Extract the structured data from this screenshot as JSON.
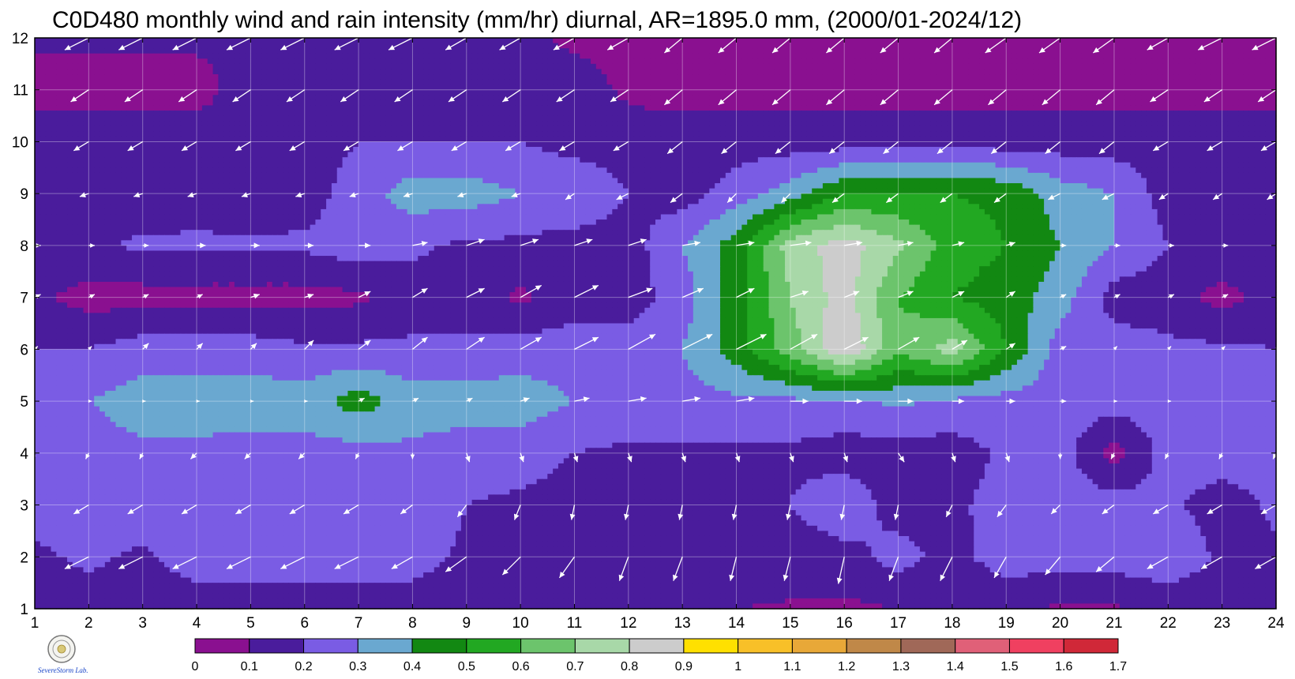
{
  "chart_data": {
    "type": "heatmap",
    "title": "C0D480 monthly wind and rain intensity (mm/hr) diurnal, AR=1895.0 mm, (2000/01-2024/12)",
    "xlabel": "",
    "ylabel": "",
    "xlim": [
      1,
      24
    ],
    "ylim": [
      1,
      12
    ],
    "x_ticks": [
      "1",
      "2",
      "3",
      "4",
      "5",
      "6",
      "7",
      "8",
      "9",
      "10",
      "11",
      "12",
      "13",
      "14",
      "15",
      "16",
      "17",
      "18",
      "19",
      "20",
      "21",
      "22",
      "23",
      "24"
    ],
    "y_ticks": [
      "1",
      "2",
      "3",
      "4",
      "5",
      "6",
      "7",
      "8",
      "9",
      "10",
      "11",
      "12"
    ],
    "grid": true,
    "colorbar": {
      "placement": "bottom",
      "levels": [
        "0",
        "0.1",
        "0.2",
        "0.3",
        "0.4",
        "0.5",
        "0.6",
        "0.7",
        "0.8",
        "0.9",
        "1",
        "1.1",
        "1.2",
        "1.3",
        "1.4",
        "1.5",
        "1.6",
        "1.7"
      ],
      "colors": [
        "#8a1090",
        "#4a1c9c",
        "#7a5ce4",
        "#6aa8d0",
        "#128812",
        "#22a822",
        "#6cc46c",
        "#a8d8a8",
        "#cccccc",
        "#ffe000",
        "#f8c028",
        "#e8a838",
        "#c08848",
        "#a06858",
        "#e06078",
        "#f04060",
        "#d02838"
      ]
    },
    "rain_grid_hours": [
      1,
      2,
      3,
      4,
      5,
      6,
      7,
      8,
      9,
      10,
      11,
      12,
      13,
      14,
      15,
      16,
      17,
      18,
      19,
      20,
      21,
      22,
      23,
      24
    ],
    "rain_intensity_by_month": [
      {
        "month": 1,
        "values": [
          0.15,
          0.15,
          0.15,
          0.15,
          0.15,
          0.15,
          0.15,
          0.15,
          0.15,
          0.15,
          0.15,
          0.15,
          0.12,
          0.1,
          0.09,
          0.08,
          0.1,
          0.12,
          0.1,
          0.09,
          0.09,
          0.12,
          0.15,
          0.15
        ]
      },
      {
        "month": 2,
        "values": [
          0.18,
          0.22,
          0.18,
          0.25,
          0.25,
          0.25,
          0.26,
          0.24,
          0.18,
          0.15,
          0.15,
          0.15,
          0.15,
          0.15,
          0.15,
          0.16,
          0.24,
          0.16,
          0.26,
          0.25,
          0.25,
          0.28,
          0.18,
          0.18
        ]
      },
      {
        "month": 3,
        "values": [
          0.24,
          0.26,
          0.28,
          0.28,
          0.28,
          0.26,
          0.26,
          0.26,
          0.2,
          0.18,
          0.15,
          0.15,
          0.15,
          0.15,
          0.2,
          0.28,
          0.15,
          0.18,
          0.24,
          0.25,
          0.25,
          0.22,
          0.15,
          0.22
        ]
      },
      {
        "month": 4,
        "values": [
          0.25,
          0.25,
          0.28,
          0.28,
          0.26,
          0.26,
          0.26,
          0.28,
          0.25,
          0.25,
          0.2,
          0.18,
          0.18,
          0.18,
          0.18,
          0.15,
          0.15,
          0.15,
          0.22,
          0.25,
          0.05,
          0.25,
          0.25,
          0.25
        ]
      },
      {
        "month": 5,
        "values": [
          0.25,
          0.3,
          0.35,
          0.35,
          0.35,
          0.35,
          0.45,
          0.35,
          0.35,
          0.35,
          0.3,
          0.26,
          0.26,
          0.28,
          0.28,
          0.28,
          0.32,
          0.28,
          0.26,
          0.25,
          0.25,
          0.25,
          0.25,
          0.25
        ]
      },
      {
        "month": 6,
        "values": [
          0.2,
          0.2,
          0.25,
          0.25,
          0.25,
          0.22,
          0.22,
          0.22,
          0.22,
          0.25,
          0.25,
          0.25,
          0.3,
          0.45,
          0.65,
          0.9,
          0.62,
          0.75,
          0.5,
          0.25,
          0.25,
          0.22,
          0.22,
          0.2
        ]
      },
      {
        "month": 7,
        "values": [
          0.12,
          0.06,
          0.06,
          0.06,
          0.06,
          0.06,
          0.08,
          0.15,
          0.15,
          0.08,
          0.15,
          0.15,
          0.25,
          0.45,
          0.7,
          0.85,
          0.6,
          0.5,
          0.45,
          0.35,
          0.15,
          0.15,
          0.06,
          0.15
        ]
      },
      {
        "month": 8,
        "values": [
          0.2,
          0.18,
          0.22,
          0.22,
          0.22,
          0.22,
          0.26,
          0.22,
          0.18,
          0.18,
          0.15,
          0.15,
          0.3,
          0.45,
          0.75,
          0.85,
          0.72,
          0.55,
          0.5,
          0.4,
          0.3,
          0.2,
          0.18,
          0.18
        ]
      },
      {
        "month": 9,
        "values": [
          0.2,
          0.15,
          0.12,
          0.15,
          0.12,
          0.15,
          0.25,
          0.35,
          0.35,
          0.3,
          0.3,
          0.2,
          0.15,
          0.25,
          0.35,
          0.5,
          0.5,
          0.5,
          0.48,
          0.35,
          0.3,
          0.15,
          0.15,
          0.2
        ]
      },
      {
        "month": 10,
        "values": [
          0.15,
          0.15,
          0.15,
          0.15,
          0.15,
          0.15,
          0.2,
          0.2,
          0.2,
          0.2,
          0.15,
          0.15,
          0.15,
          0.15,
          0.15,
          0.15,
          0.15,
          0.15,
          0.15,
          0.15,
          0.15,
          0.15,
          0.15,
          0.15
        ]
      },
      {
        "month": 11,
        "values": [
          0.06,
          0.06,
          0.06,
          0.06,
          0.15,
          0.15,
          0.15,
          0.15,
          0.15,
          0.15,
          0.15,
          0.08,
          0.06,
          0.06,
          0.06,
          0.06,
          0.06,
          0.06,
          0.06,
          0.06,
          0.06,
          0.06,
          0.06,
          0.06
        ]
      },
      {
        "month": 12,
        "values": [
          0.12,
          0.12,
          0.12,
          0.12,
          0.12,
          0.12,
          0.12,
          0.12,
          0.12,
          0.12,
          0.08,
          0.06,
          0.06,
          0.06,
          0.06,
          0.06,
          0.06,
          0.06,
          0.06,
          0.06,
          0.06,
          0.06,
          0.06,
          0.06
        ]
      }
    ],
    "wind_vectors_by_month": [
      {
        "month": 1,
        "u": [
          -0.6,
          -0.7,
          -0.7,
          -0.7,
          -0.7,
          -0.7,
          -0.7,
          -0.7,
          -0.6,
          -0.6,
          -0.6,
          -0.6,
          -0.5,
          -0.5,
          -0.5,
          -0.4,
          -0.5,
          -0.5,
          -0.5,
          -0.5,
          -0.6,
          -0.6,
          -0.6,
          -0.6
        ],
        "v": [
          -0.4,
          -0.4,
          -0.4,
          -0.4,
          -0.4,
          -0.4,
          -0.4,
          -0.4,
          -0.4,
          -0.4,
          -0.4,
          -0.4,
          -0.4,
          -0.4,
          -0.4,
          -0.4,
          -0.4,
          -0.4,
          -0.4,
          -0.4,
          -0.4,
          -0.4,
          -0.4,
          -0.4
        ]
      },
      {
        "month": 2,
        "u": [
          -0.7,
          -0.8,
          -0.8,
          -0.8,
          -0.8,
          -0.8,
          -0.8,
          -0.7,
          -0.7,
          -0.6,
          -0.5,
          -0.3,
          -0.3,
          -0.2,
          -0.2,
          -0.2,
          -0.3,
          -0.4,
          -0.4,
          -0.5,
          -0.6,
          -0.7,
          -0.7,
          -0.7
        ],
        "v": [
          -0.4,
          -0.4,
          -0.4,
          -0.4,
          -0.4,
          -0.4,
          -0.4,
          -0.4,
          -0.5,
          -0.6,
          -0.7,
          -0.8,
          -0.8,
          -0.8,
          -0.8,
          -0.9,
          -0.8,
          -0.8,
          -0.7,
          -0.6,
          -0.5,
          -0.4,
          -0.4,
          -0.4
        ]
      },
      {
        "month": 3,
        "u": [
          -0.5,
          -0.5,
          -0.5,
          -0.5,
          -0.5,
          -0.5,
          -0.5,
          -0.4,
          -0.3,
          -0.2,
          -0.1,
          -0.1,
          -0.1,
          -0.1,
          -0.1,
          -0.1,
          -0.1,
          -0.2,
          -0.3,
          -0.3,
          -0.4,
          -0.5,
          -0.5,
          -0.5
        ],
        "v": [
          -0.3,
          -0.3,
          -0.3,
          -0.3,
          -0.3,
          -0.3,
          -0.3,
          -0.3,
          -0.4,
          -0.5,
          -0.5,
          -0.5,
          -0.5,
          -0.5,
          -0.5,
          -0.5,
          -0.5,
          -0.4,
          -0.4,
          -0.3,
          -0.3,
          -0.3,
          -0.3,
          -0.3
        ]
      },
      {
        "month": 4,
        "u": [
          -0.1,
          -0.1,
          -0.1,
          -0.2,
          -0.2,
          -0.2,
          -0.1,
          0,
          0.1,
          0.1,
          0.1,
          0.1,
          0.1,
          0.1,
          0.1,
          0.1,
          0.2,
          0.1,
          0.1,
          0,
          -0.1,
          -0.1,
          -0.1,
          -0.1
        ],
        "v": [
          -0.2,
          -0.2,
          -0.2,
          -0.2,
          -0.2,
          -0.2,
          -0.2,
          -0.2,
          -0.3,
          -0.3,
          -0.3,
          -0.3,
          -0.3,
          -0.3,
          -0.3,
          -0.3,
          -0.3,
          -0.3,
          -0.3,
          -0.2,
          -0.2,
          -0.2,
          -0.2,
          -0.2
        ]
      },
      {
        "month": 5,
        "u": [
          0,
          0.1,
          0.1,
          0.1,
          0.1,
          0.1,
          0.2,
          0.2,
          0.2,
          0.3,
          0.5,
          0.6,
          0.6,
          0.6,
          0.6,
          0.6,
          0.5,
          0.4,
          0.3,
          0.2,
          0.1,
          0.1,
          0,
          0
        ],
        "v": [
          0,
          0,
          0,
          0,
          0,
          0,
          0.1,
          0.1,
          0.1,
          0.1,
          0.1,
          0.1,
          0.1,
          0.1,
          0,
          0,
          0,
          0,
          0,
          0,
          0,
          0,
          0,
          0
        ]
      },
      {
        "month": 6,
        "u": [
          0.1,
          0.1,
          0.2,
          0.2,
          0.2,
          0.3,
          0.4,
          0.5,
          0.6,
          0.7,
          0.8,
          0.9,
          1.0,
          1.0,
          0.9,
          0.8,
          0.7,
          0.5,
          0.3,
          0.2,
          0.1,
          0.1,
          0.1,
          0.1
        ],
        "v": [
          0.1,
          0.1,
          0.2,
          0.2,
          0.2,
          0.3,
          0.3,
          0.4,
          0.4,
          0.4,
          0.4,
          0.5,
          0.5,
          0.5,
          0.5,
          0.4,
          0.4,
          0.3,
          0.2,
          0.1,
          0.1,
          0.1,
          0.1,
          0.1
        ]
      },
      {
        "month": 7,
        "u": [
          0.2,
          0.2,
          0.2,
          0.2,
          0.3,
          0.3,
          0.4,
          0.5,
          0.6,
          0.7,
          0.8,
          0.8,
          0.7,
          0.6,
          0.6,
          0.5,
          0.5,
          0.4,
          0.3,
          0.2,
          0.2,
          0.2,
          0.2,
          0.2
        ],
        "v": [
          0.1,
          0.1,
          0.1,
          0.1,
          0.1,
          0.1,
          0.2,
          0.3,
          0.3,
          0.4,
          0.4,
          0.3,
          0.3,
          0.3,
          0.2,
          0.2,
          0.2,
          0.2,
          0.2,
          0.1,
          0.1,
          0.1,
          0.1,
          0.1
        ]
      },
      {
        "month": 8,
        "u": [
          0.2,
          0.2,
          0.2,
          0.3,
          0.3,
          0.3,
          0.4,
          0.5,
          0.6,
          0.6,
          0.6,
          0.6,
          0.6,
          0.6,
          0.7,
          0.6,
          0.5,
          0.4,
          0.3,
          0.2,
          0.2,
          0.2,
          0.2,
          0.2
        ],
        "v": [
          0,
          0,
          0,
          0,
          0,
          0,
          0,
          0.1,
          0.2,
          0.2,
          0.2,
          0.2,
          0.1,
          0.1,
          0.1,
          0.1,
          0.1,
          0.1,
          0.1,
          0,
          0,
          0,
          0,
          0
        ]
      },
      {
        "month": 9,
        "u": [
          -0.2,
          -0.3,
          -0.3,
          -0.3,
          -0.3,
          -0.3,
          -0.3,
          -0.3,
          -0.3,
          -0.3,
          -0.3,
          -0.4,
          -0.4,
          -0.3,
          -0.3,
          -0.4,
          -0.4,
          -0.4,
          -0.4,
          -0.4,
          -0.4,
          -0.3,
          -0.3,
          -0.3
        ],
        "v": [
          -0.1,
          -0.1,
          -0.1,
          -0.1,
          -0.1,
          -0.1,
          -0.1,
          -0.1,
          -0.1,
          -0.1,
          -0.2,
          -0.2,
          -0.3,
          -0.3,
          -0.3,
          -0.3,
          -0.3,
          -0.3,
          -0.3,
          -0.2,
          -0.2,
          -0.2,
          -0.2,
          -0.2
        ]
      },
      {
        "month": 10,
        "u": [
          -0.5,
          -0.5,
          -0.5,
          -0.5,
          -0.5,
          -0.5,
          -0.5,
          -0.5,
          -0.5,
          -0.5,
          -0.5,
          -0.5,
          -0.5,
          -0.5,
          -0.5,
          -0.5,
          -0.5,
          -0.5,
          -0.5,
          -0.5,
          -0.5,
          -0.5,
          -0.5,
          -0.5
        ],
        "v": [
          -0.3,
          -0.3,
          -0.3,
          -0.3,
          -0.3,
          -0.3,
          -0.3,
          -0.3,
          -0.3,
          -0.3,
          -0.3,
          -0.3,
          -0.4,
          -0.4,
          -0.4,
          -0.4,
          -0.4,
          -0.4,
          -0.4,
          -0.4,
          -0.4,
          -0.3,
          -0.3,
          -0.3
        ]
      },
      {
        "month": 11,
        "u": [
          -0.6,
          -0.6,
          -0.6,
          -0.6,
          -0.6,
          -0.6,
          -0.6,
          -0.6,
          -0.6,
          -0.6,
          -0.6,
          -0.6,
          -0.6,
          -0.6,
          -0.6,
          -0.6,
          -0.6,
          -0.6,
          -0.6,
          -0.6,
          -0.6,
          -0.6,
          -0.6,
          -0.6
        ],
        "v": [
          -0.4,
          -0.4,
          -0.4,
          -0.4,
          -0.4,
          -0.4,
          -0.4,
          -0.4,
          -0.4,
          -0.4,
          -0.4,
          -0.4,
          -0.5,
          -0.5,
          -0.5,
          -0.5,
          -0.5,
          -0.5,
          -0.5,
          -0.5,
          -0.5,
          -0.4,
          -0.4,
          -0.4
        ]
      },
      {
        "month": 12,
        "u": [
          -0.8,
          -0.8,
          -0.8,
          -0.8,
          -0.8,
          -0.8,
          -0.8,
          -0.8,
          -0.7,
          -0.7,
          -0.7,
          -0.7,
          -0.6,
          -0.6,
          -0.6,
          -0.6,
          -0.6,
          -0.6,
          -0.7,
          -0.7,
          -0.7,
          -0.7,
          -0.8,
          -0.8
        ],
        "v": [
          -0.4,
          -0.4,
          -0.4,
          -0.4,
          -0.4,
          -0.4,
          -0.4,
          -0.4,
          -0.4,
          -0.4,
          -0.4,
          -0.4,
          -0.5,
          -0.5,
          -0.5,
          -0.5,
          -0.5,
          -0.5,
          -0.5,
          -0.5,
          -0.5,
          -0.4,
          -0.4,
          -0.4
        ]
      }
    ]
  },
  "logo": {
    "text": "SevereStorm Lab."
  }
}
